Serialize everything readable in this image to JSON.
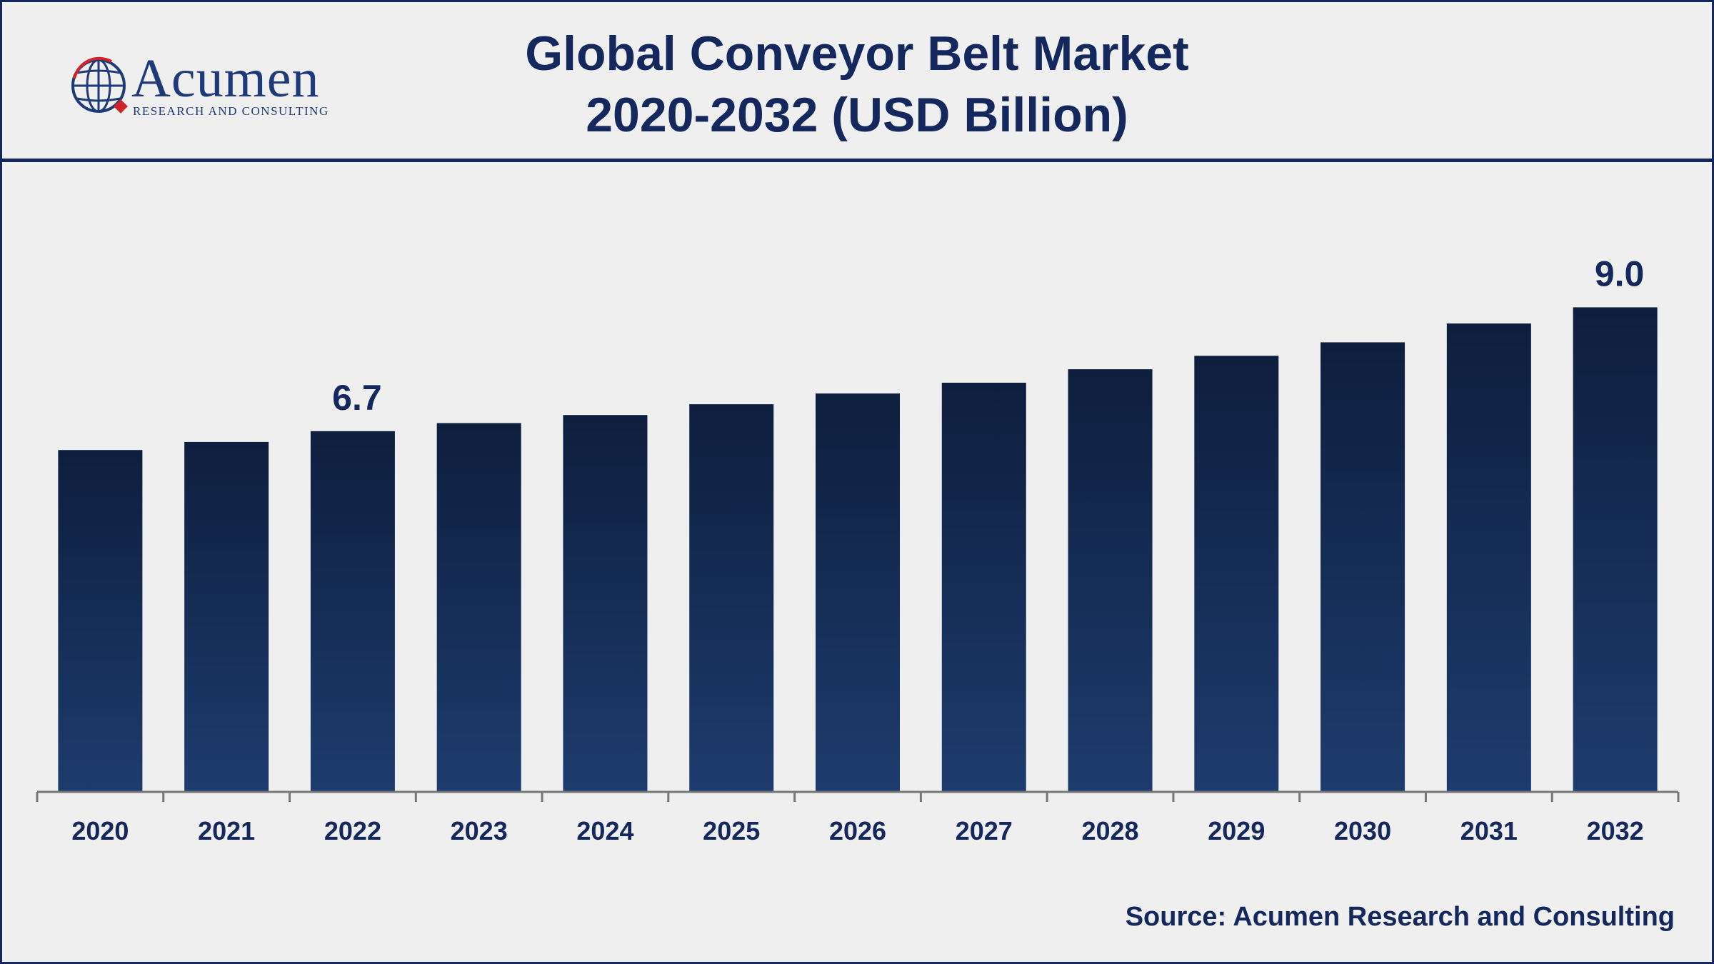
{
  "logo": {
    "name": "Acumen",
    "subtitle": "RESEARCH AND CONSULTING"
  },
  "chart_data": {
    "type": "bar",
    "title_line1": "Global Conveyor Belt Market",
    "title_line2": "2020-2032 (USD Billion)",
    "categories": [
      "2020",
      "2021",
      "2022",
      "2023",
      "2024",
      "2025",
      "2026",
      "2027",
      "2028",
      "2029",
      "2030",
      "2031",
      "2032"
    ],
    "values": [
      6.35,
      6.5,
      6.7,
      6.85,
      7.0,
      7.2,
      7.4,
      7.6,
      7.85,
      8.1,
      8.35,
      8.7,
      9.0
    ],
    "data_labels": [
      {
        "category": "2022",
        "text": "6.7"
      },
      {
        "category": "2032",
        "text": "9.0"
      }
    ],
    "xlabel": "",
    "ylabel": "",
    "ylim": [
      0,
      10
    ],
    "grid": false,
    "legend": "none"
  },
  "source": "Source: Acumen Research and Consulting",
  "colors": {
    "bar_top": "#0e1e3e",
    "bar_bottom": "#1d3c6e",
    "text": "#14285e",
    "axis": "#777777",
    "logo_red": "#d0232a"
  }
}
